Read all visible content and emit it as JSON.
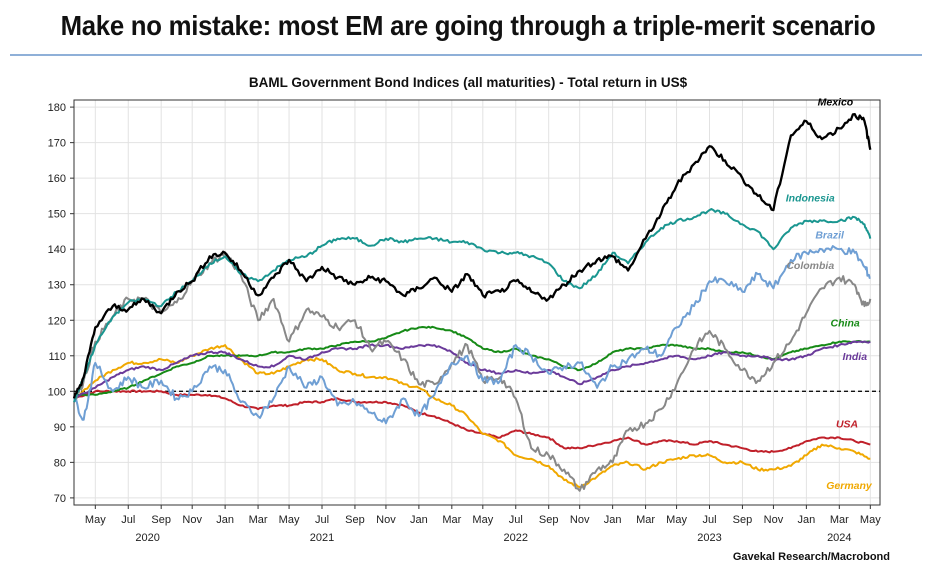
{
  "headline": "Make no mistake: most EM are going through a triple-merit scenario",
  "chart_data": {
    "type": "line",
    "title": "BAML Government Bond Indices (all maturities) - Total return in US$",
    "source": "Gavekal Research/Macrobond",
    "y_ticks": [
      70,
      80,
      90,
      100,
      110,
      120,
      130,
      140,
      150,
      160,
      170,
      180
    ],
    "ylim": [
      68,
      182
    ],
    "xlim": [
      2020.22,
      2024.38
    ],
    "x_ticks": [
      {
        "label": "May",
        "x": 2020.33
      },
      {
        "label": "Jul",
        "x": 2020.5
      },
      {
        "label": "Sep",
        "x": 2020.67
      },
      {
        "label": "Nov",
        "x": 2020.83
      },
      {
        "label": "Jan",
        "x": 2021.0
      },
      {
        "label": "Mar",
        "x": 2021.17
      },
      {
        "label": "May",
        "x": 2021.33
      },
      {
        "label": "Jul",
        "x": 2021.5
      },
      {
        "label": "Sep",
        "x": 2021.67
      },
      {
        "label": "Nov",
        "x": 2021.83
      },
      {
        "label": "Jan",
        "x": 2022.0
      },
      {
        "label": "Mar",
        "x": 2022.17
      },
      {
        "label": "May",
        "x": 2022.33
      },
      {
        "label": "Jul",
        "x": 2022.5
      },
      {
        "label": "Sep",
        "x": 2022.67
      },
      {
        "label": "Nov",
        "x": 2022.83
      },
      {
        "label": "Jan",
        "x": 2023.0
      },
      {
        "label": "Mar",
        "x": 2023.17
      },
      {
        "label": "May",
        "x": 2023.33
      },
      {
        "label": "Jul",
        "x": 2023.5
      },
      {
        "label": "Sep",
        "x": 2023.67
      },
      {
        "label": "Nov",
        "x": 2023.83
      },
      {
        "label": "Jan",
        "x": 2024.0
      },
      {
        "label": "Mar",
        "x": 2024.17
      },
      {
        "label": "May",
        "x": 2024.33
      }
    ],
    "years": [
      {
        "label": "2020",
        "x": 2020.6
      },
      {
        "label": "2021",
        "x": 2021.5
      },
      {
        "label": "2022",
        "x": 2022.5
      },
      {
        "label": "2023",
        "x": 2023.5
      },
      {
        "label": "2024",
        "x": 2024.17
      }
    ],
    "reference_line": 100,
    "grid": true,
    "series": [
      {
        "name": "Mexico",
        "color": "#000000",
        "x": [
          2020.22,
          2020.27,
          2020.33,
          2020.42,
          2020.5,
          2020.58,
          2020.67,
          2020.75,
          2020.83,
          2020.92,
          2021.0,
          2021.08,
          2021.17,
          2021.25,
          2021.33,
          2021.42,
          2021.5,
          2021.58,
          2021.67,
          2021.75,
          2021.83,
          2021.92,
          2022.0,
          2022.08,
          2022.17,
          2022.25,
          2022.33,
          2022.42,
          2022.5,
          2022.58,
          2022.67,
          2022.75,
          2022.83,
          2022.92,
          2023.0,
          2023.08,
          2023.17,
          2023.25,
          2023.33,
          2023.42,
          2023.5,
          2023.58,
          2023.67,
          2023.75,
          2023.83,
          2023.92,
          2024.0,
          2024.08,
          2024.17,
          2024.25,
          2024.3,
          2024.33
        ],
        "y": [
          98,
          104,
          118,
          124,
          123,
          126,
          122,
          128,
          131,
          138,
          139,
          134,
          127,
          132,
          137,
          131,
          135,
          132,
          130,
          132,
          131,
          127,
          129,
          132,
          128,
          133,
          127,
          128,
          131,
          128,
          126,
          130,
          134,
          137,
          138,
          134,
          143,
          150,
          158,
          164,
          169,
          165,
          160,
          155,
          151,
          172,
          176,
          171,
          174,
          178,
          176,
          168
        ]
      },
      {
        "name": "Indonesia",
        "color": "#1a9690",
        "x": [
          2020.22,
          2020.27,
          2020.33,
          2020.42,
          2020.5,
          2020.58,
          2020.67,
          2020.75,
          2020.83,
          2020.92,
          2021.0,
          2021.08,
          2021.17,
          2021.25,
          2021.33,
          2021.42,
          2021.5,
          2021.58,
          2021.67,
          2021.75,
          2021.83,
          2021.92,
          2022.0,
          2022.08,
          2022.17,
          2022.25,
          2022.33,
          2022.42,
          2022.5,
          2022.58,
          2022.67,
          2022.75,
          2022.83,
          2022.92,
          2023.0,
          2023.08,
          2023.17,
          2023.25,
          2023.33,
          2023.42,
          2023.5,
          2023.58,
          2023.67,
          2023.75,
          2023.83,
          2023.92,
          2024.0,
          2024.08,
          2024.17,
          2024.25,
          2024.3,
          2024.33
        ],
        "y": [
          97,
          104,
          113,
          121,
          125,
          126,
          124,
          128,
          131,
          136,
          138,
          133,
          131,
          134,
          137,
          138,
          141,
          143,
          143,
          141,
          143,
          142,
          143,
          143,
          142,
          142,
          140,
          139,
          139,
          138,
          136,
          131,
          129,
          133,
          139,
          136,
          142,
          146,
          148,
          149,
          151,
          150,
          147,
          145,
          140,
          146,
          148,
          148,
          148,
          149,
          147,
          143
        ]
      },
      {
        "name": "Brazil",
        "color": "#6f9fd4",
        "x": [
          2020.22,
          2020.27,
          2020.33,
          2020.42,
          2020.5,
          2020.58,
          2020.67,
          2020.75,
          2020.83,
          2020.92,
          2021.0,
          2021.08,
          2021.17,
          2021.25,
          2021.33,
          2021.42,
          2021.5,
          2021.58,
          2021.67,
          2021.75,
          2021.83,
          2021.92,
          2022.0,
          2022.08,
          2022.17,
          2022.25,
          2022.33,
          2022.42,
          2022.5,
          2022.58,
          2022.67,
          2022.75,
          2022.83,
          2022.92,
          2023.0,
          2023.08,
          2023.17,
          2023.25,
          2023.33,
          2023.42,
          2023.5,
          2023.58,
          2023.67,
          2023.75,
          2023.83,
          2023.92,
          2024.0,
          2024.08,
          2024.17,
          2024.25,
          2024.3,
          2024.33
        ],
        "y": [
          98,
          92,
          108,
          100,
          104,
          101,
          103,
          98,
          100,
          107,
          106,
          97,
          93,
          98,
          107,
          101,
          104,
          96,
          97,
          94,
          91,
          98,
          93,
          99,
          108,
          110,
          103,
          103,
          113,
          110,
          105,
          107,
          108,
          101,
          107,
          109,
          112,
          110,
          118,
          124,
          131,
          131,
          128,
          133,
          129,
          137,
          139,
          140,
          140,
          139,
          135,
          132
        ]
      },
      {
        "name": "Colombia",
        "color": "#888888",
        "x": [
          2020.22,
          2020.27,
          2020.33,
          2020.42,
          2020.5,
          2020.58,
          2020.67,
          2020.75,
          2020.83,
          2020.92,
          2021.0,
          2021.08,
          2021.17,
          2021.25,
          2021.33,
          2021.42,
          2021.5,
          2021.58,
          2021.67,
          2021.75,
          2021.83,
          2021.92,
          2022.0,
          2022.08,
          2022.17,
          2022.25,
          2022.33,
          2022.42,
          2022.5,
          2022.58,
          2022.67,
          2022.75,
          2022.83,
          2022.92,
          2023.0,
          2023.08,
          2023.17,
          2023.25,
          2023.33,
          2023.42,
          2023.5,
          2023.58,
          2023.67,
          2023.75,
          2023.83,
          2023.92,
          2024.0,
          2024.08,
          2024.17,
          2024.25,
          2024.3,
          2024.33
        ],
        "y": [
          97,
          103,
          114,
          121,
          126,
          126,
          122,
          125,
          131,
          136,
          139,
          133,
          120,
          126,
          114,
          123,
          121,
          118,
          120,
          112,
          114,
          109,
          102,
          102,
          108,
          113,
          103,
          104,
          98,
          84,
          82,
          78,
          72,
          78,
          80,
          89,
          91,
          95,
          102,
          112,
          117,
          112,
          106,
          103,
          108,
          114,
          122,
          129,
          132,
          130,
          124,
          126
        ]
      },
      {
        "name": "China",
        "color": "#168a16",
        "x": [
          2020.22,
          2020.33,
          2020.42,
          2020.5,
          2020.58,
          2020.67,
          2020.75,
          2020.83,
          2020.92,
          2021.0,
          2021.08,
          2021.17,
          2021.25,
          2021.33,
          2021.42,
          2021.5,
          2021.58,
          2021.67,
          2021.75,
          2021.83,
          2021.92,
          2022.0,
          2022.08,
          2022.17,
          2022.25,
          2022.33,
          2022.42,
          2022.5,
          2022.58,
          2022.67,
          2022.75,
          2022.83,
          2022.92,
          2023.0,
          2023.08,
          2023.17,
          2023.25,
          2023.33,
          2023.42,
          2023.5,
          2023.58,
          2023.67,
          2023.75,
          2023.83,
          2023.92,
          2024.0,
          2024.08,
          2024.17,
          2024.25,
          2024.33
        ],
        "y": [
          99,
          99,
          100,
          101,
          103,
          105,
          107,
          108,
          110,
          110,
          110,
          110,
          111,
          111,
          112,
          112,
          113,
          114,
          114,
          115,
          117,
          118,
          118,
          117,
          115,
          112,
          111,
          112,
          110,
          109,
          107,
          106,
          108,
          111,
          112,
          112,
          113,
          113,
          112,
          112,
          111,
          111,
          110,
          109,
          111,
          112,
          113,
          114,
          114,
          114
        ]
      },
      {
        "name": "India",
        "color": "#6a3a9a",
        "x": [
          2020.22,
          2020.33,
          2020.42,
          2020.5,
          2020.58,
          2020.67,
          2020.75,
          2020.83,
          2020.92,
          2021.0,
          2021.08,
          2021.17,
          2021.25,
          2021.33,
          2021.42,
          2021.5,
          2021.58,
          2021.67,
          2021.75,
          2021.83,
          2021.92,
          2022.0,
          2022.08,
          2022.17,
          2022.25,
          2022.33,
          2022.42,
          2022.5,
          2022.58,
          2022.67,
          2022.75,
          2022.83,
          2022.92,
          2023.0,
          2023.08,
          2023.17,
          2023.25,
          2023.33,
          2023.42,
          2023.5,
          2023.58,
          2023.67,
          2023.75,
          2023.83,
          2023.92,
          2024.0,
          2024.08,
          2024.17,
          2024.25,
          2024.33
        ],
        "y": [
          98,
          101,
          104,
          106,
          107,
          106,
          108,
          110,
          111,
          111,
          109,
          107,
          107,
          110,
          109,
          111,
          112,
          112,
          113,
          113,
          112,
          113,
          113,
          111,
          108,
          106,
          105,
          106,
          105,
          106,
          104,
          102,
          104,
          106,
          107,
          108,
          109,
          110,
          109,
          110,
          111,
          110,
          110,
          109,
          109,
          110,
          112,
          113,
          114,
          114
        ]
      },
      {
        "name": "USA",
        "color": "#c0202a",
        "x": [
          2020.22,
          2020.33,
          2020.42,
          2020.5,
          2020.58,
          2020.67,
          2020.75,
          2020.83,
          2020.92,
          2021.0,
          2021.08,
          2021.17,
          2021.25,
          2021.33,
          2021.42,
          2021.5,
          2021.58,
          2021.67,
          2021.75,
          2021.83,
          2021.92,
          2022.0,
          2022.08,
          2022.17,
          2022.25,
          2022.33,
          2022.42,
          2022.5,
          2022.58,
          2022.67,
          2022.75,
          2022.83,
          2022.92,
          2023.0,
          2023.08,
          2023.17,
          2023.25,
          2023.33,
          2023.42,
          2023.5,
          2023.58,
          2023.67,
          2023.75,
          2023.83,
          2023.92,
          2024.0,
          2024.08,
          2024.17,
          2024.25,
          2024.33
        ],
        "y": [
          98,
          100,
          100,
          100,
          100,
          100,
          99,
          99,
          99,
          98,
          96,
          95,
          96,
          96,
          97,
          97,
          98,
          97,
          97,
          97,
          96,
          94,
          93,
          91,
          89,
          88,
          87,
          89,
          88,
          87,
          84,
          84,
          85,
          86,
          87,
          85,
          86,
          86,
          85,
          86,
          85,
          84,
          83,
          83,
          84,
          86,
          87,
          87,
          86,
          85
        ]
      },
      {
        "name": "Germany",
        "color": "#f0a800",
        "x": [
          2020.22,
          2020.33,
          2020.42,
          2020.5,
          2020.58,
          2020.67,
          2020.75,
          2020.83,
          2020.92,
          2021.0,
          2021.08,
          2021.17,
          2021.25,
          2021.33,
          2021.42,
          2021.5,
          2021.58,
          2021.67,
          2021.75,
          2021.83,
          2021.92,
          2022.0,
          2022.08,
          2022.17,
          2022.25,
          2022.33,
          2022.42,
          2022.5,
          2022.58,
          2022.67,
          2022.75,
          2022.83,
          2022.92,
          2023.0,
          2023.08,
          2023.17,
          2023.25,
          2023.33,
          2023.42,
          2023.5,
          2023.58,
          2023.67,
          2023.75,
          2023.83,
          2023.92,
          2024.0,
          2024.08,
          2024.17,
          2024.25,
          2024.33
        ],
        "y": [
          98,
          103,
          106,
          108,
          108,
          109,
          108,
          110,
          112,
          113,
          109,
          105,
          105,
          107,
          109,
          109,
          106,
          105,
          104,
          104,
          102,
          101,
          98,
          96,
          93,
          88,
          86,
          82,
          81,
          79,
          75,
          73,
          76,
          79,
          80,
          78,
          80,
          81,
          82,
          82,
          80,
          80,
          78,
          78,
          79,
          82,
          85,
          84,
          83,
          81
        ]
      }
    ]
  }
}
